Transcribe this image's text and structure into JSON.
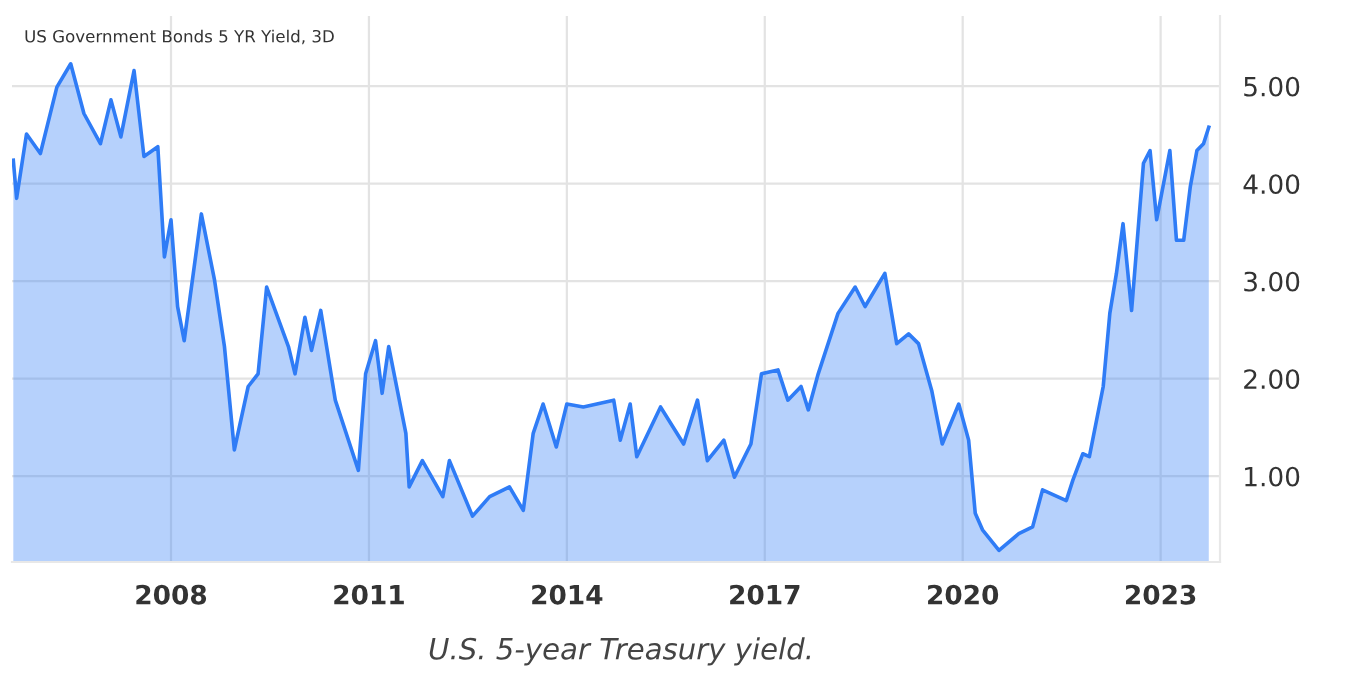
{
  "chart_data": {
    "type": "area",
    "title": "US Government Bonds 5 YR Yield, 3D",
    "annotations": [
      "U.S. 5-year Treasury yield."
    ],
    "x": [
      2005.61,
      2005.66,
      2005.81,
      2006.02,
      2006.27,
      2006.48,
      2006.68,
      2006.93,
      2007.09,
      2007.24,
      2007.44,
      2007.59,
      2007.8,
      2007.9,
      2008.0,
      2008.1,
      2008.2,
      2008.46,
      2008.66,
      2008.81,
      2008.96,
      2009.17,
      2009.32,
      2009.45,
      2009.78,
      2009.88,
      2010.03,
      2010.13,
      2010.27,
      2010.49,
      2010.84,
      2010.95,
      2011.1,
      2011.2,
      2011.3,
      2011.56,
      2011.61,
      2011.81,
      2012.12,
      2012.22,
      2012.57,
      2012.83,
      2013.13,
      2013.34,
      2013.49,
      2013.64,
      2013.84,
      2014.0,
      2014.25,
      2014.71,
      2014.81,
      2014.96,
      2015.06,
      2015.42,
      2015.77,
      2015.98,
      2016.13,
      2016.38,
      2016.54,
      2016.79,
      2016.95,
      2017.2,
      2017.35,
      2017.55,
      2017.66,
      2017.81,
      2018.11,
      2018.37,
      2018.52,
      2018.82,
      2019.0,
      2019.18,
      2019.33,
      2019.53,
      2019.69,
      2019.94,
      2020.09,
      2020.19,
      2020.3,
      2020.55,
      2020.85,
      2021.06,
      2021.21,
      2021.57,
      2021.67,
      2021.82,
      2021.92,
      2022.13,
      2022.23,
      2022.33,
      2022.43,
      2022.56,
      2022.74,
      2022.84,
      2022.94,
      2023.14,
      2023.24,
      2023.35,
      2023.45,
      2023.55,
      2023.65,
      2023.73
    ],
    "series": [
      {
        "color": "#2f7cf6",
        "values": [
          4.24,
          3.85,
          4.51,
          4.31,
          4.99,
          5.23,
          4.72,
          4.41,
          4.86,
          4.48,
          5.16,
          4.28,
          4.38,
          3.25,
          3.63,
          2.74,
          2.39,
          3.69,
          3.01,
          2.33,
          1.27,
          1.92,
          2.05,
          2.94,
          2.33,
          2.05,
          2.63,
          2.29,
          2.7,
          1.78,
          1.06,
          2.05,
          2.39,
          1.85,
          2.33,
          1.44,
          0.89,
          1.16,
          0.79,
          1.16,
          0.59,
          0.79,
          0.89,
          0.65,
          1.44,
          1.74,
          1.3,
          1.74,
          1.71,
          1.78,
          1.37,
          1.74,
          1.2,
          1.71,
          1.33,
          1.78,
          1.16,
          1.37,
          0.99,
          1.33,
          2.05,
          2.09,
          1.78,
          1.92,
          1.68,
          2.05,
          2.67,
          2.94,
          2.74,
          3.08,
          2.36,
          2.46,
          2.36,
          1.88,
          1.33,
          1.74,
          1.37,
          0.62,
          0.45,
          0.24,
          0.41,
          0.48,
          0.86,
          0.75,
          0.96,
          1.23,
          1.2,
          1.92,
          2.67,
          3.08,
          3.59,
          2.7,
          4.21,
          4.34,
          3.63,
          4.34,
          3.42,
          3.42,
          3.97,
          4.34,
          4.41,
          4.58
        ]
      }
    ],
    "xlim": [
      2005.59,
      2023.9
    ],
    "ylim": [
      0.12,
      5.72
    ],
    "xticks": [
      2008,
      2011,
      2014,
      2017,
      2020,
      2023
    ],
    "yticks": [
      {
        "value": 1,
        "label": "1.00"
      },
      {
        "value": 2,
        "label": "2.00"
      },
      {
        "value": 3,
        "label": "3.00"
      },
      {
        "value": 4,
        "label": "4.00"
      },
      {
        "value": 5,
        "label": "5.00"
      }
    ],
    "grid": true
  }
}
